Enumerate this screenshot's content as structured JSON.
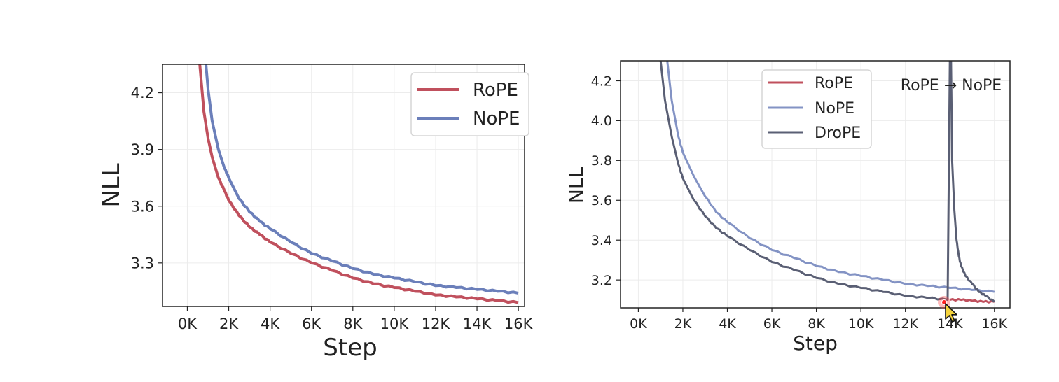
{
  "chart_data": [
    {
      "type": "line",
      "xlabel": "Step",
      "ylabel": "NLL",
      "xlim": [
        -1200,
        16300
      ],
      "ylim": [
        3.07,
        4.35
      ],
      "xticks": [
        0,
        2000,
        4000,
        6000,
        8000,
        10000,
        12000,
        14000,
        16000
      ],
      "xtick_labels": [
        "0K",
        "2K",
        "4K",
        "6K",
        "8K",
        "10K",
        "12K",
        "14K",
        "16K"
      ],
      "yticks": [
        3.3,
        3.6,
        3.9,
        4.2
      ],
      "ytick_labels": [
        "3.3",
        "3.6",
        "3.9",
        "4.2"
      ],
      "grid": true,
      "legend_position": "top-right",
      "series": [
        {
          "name": "RoPE",
          "color": "#c0505d",
          "x": [
            600,
            800,
            1000,
            1200,
            1500,
            1800,
            2000,
            2500,
            3000,
            3500,
            4000,
            5000,
            6000,
            7000,
            8000,
            9000,
            10000,
            11000,
            12000,
            13000,
            14000,
            15000,
            16000
          ],
          "y": [
            4.35,
            4.1,
            3.96,
            3.86,
            3.75,
            3.68,
            3.63,
            3.55,
            3.49,
            3.45,
            3.41,
            3.35,
            3.3,
            3.26,
            3.22,
            3.19,
            3.17,
            3.15,
            3.13,
            3.12,
            3.11,
            3.1,
            3.09
          ]
        },
        {
          "name": "NoPE",
          "color": "#6b7fba",
          "x": [
            900,
            1000,
            1200,
            1500,
            1800,
            2000,
            2500,
            3000,
            3500,
            4000,
            5000,
            6000,
            7000,
            8000,
            9000,
            10000,
            11000,
            12000,
            13000,
            14000,
            15000,
            16000
          ],
          "y": [
            4.35,
            4.22,
            4.05,
            3.9,
            3.8,
            3.75,
            3.64,
            3.57,
            3.52,
            3.48,
            3.41,
            3.35,
            3.31,
            3.27,
            3.24,
            3.22,
            3.2,
            3.18,
            3.17,
            3.16,
            3.15,
            3.14
          ]
        }
      ]
    },
    {
      "type": "line",
      "xlabel": "Step",
      "ylabel": "NLL",
      "xlim": [
        -800,
        16700
      ],
      "ylim": [
        3.06,
        4.3
      ],
      "xticks": [
        0,
        2000,
        4000,
        6000,
        8000,
        10000,
        12000,
        14000,
        16000
      ],
      "xtick_labels": [
        "0K",
        "2K",
        "4K",
        "6K",
        "8K",
        "10K",
        "12K",
        "14K",
        "16K"
      ],
      "yticks": [
        3.2,
        3.4,
        3.6,
        3.8,
        4.0,
        4.2
      ],
      "ytick_labels": [
        "3.2",
        "3.4",
        "3.6",
        "3.8",
        "4.0",
        "4.2"
      ],
      "grid": true,
      "legend_position": "top-center",
      "annotation": "RoPE → NoPE",
      "series": [
        {
          "name": "RoPE",
          "color": "#c0505d",
          "x": [
            14000,
            14500,
            15000,
            15500,
            16000
          ],
          "y": [
            3.1,
            3.1,
            3.095,
            3.09,
            3.09
          ]
        },
        {
          "name": "NoPE",
          "color": "#8393c4",
          "x": [
            1300,
            1500,
            1800,
            2000,
            2500,
            3000,
            3500,
            4000,
            5000,
            6000,
            7000,
            8000,
            9000,
            10000,
            11000,
            12000,
            13000,
            14000,
            15000,
            16000
          ],
          "y": [
            4.3,
            4.1,
            3.92,
            3.84,
            3.72,
            3.62,
            3.54,
            3.49,
            3.41,
            3.35,
            3.31,
            3.27,
            3.24,
            3.22,
            3.2,
            3.18,
            3.17,
            3.16,
            3.15,
            3.14
          ]
        },
        {
          "name": "DroPE",
          "color": "#5a5f74",
          "x": [
            1000,
            1200,
            1500,
            1800,
            2000,
            2500,
            3000,
            3500,
            4000,
            5000,
            6000,
            7000,
            8000,
            9000,
            10000,
            11000,
            12000,
            13000,
            13900,
            14000,
            14050,
            14100,
            14200,
            14300,
            14400,
            14500,
            14700,
            15000,
            15300,
            15600,
            16000
          ],
          "y": [
            4.3,
            4.1,
            3.92,
            3.78,
            3.71,
            3.6,
            3.52,
            3.46,
            3.42,
            3.35,
            3.29,
            3.25,
            3.21,
            3.18,
            3.16,
            3.14,
            3.12,
            3.11,
            3.1,
            4.3,
            4.3,
            3.8,
            3.55,
            3.4,
            3.32,
            3.27,
            3.22,
            3.18,
            3.14,
            3.12,
            3.09
          ]
        }
      ]
    }
  ]
}
